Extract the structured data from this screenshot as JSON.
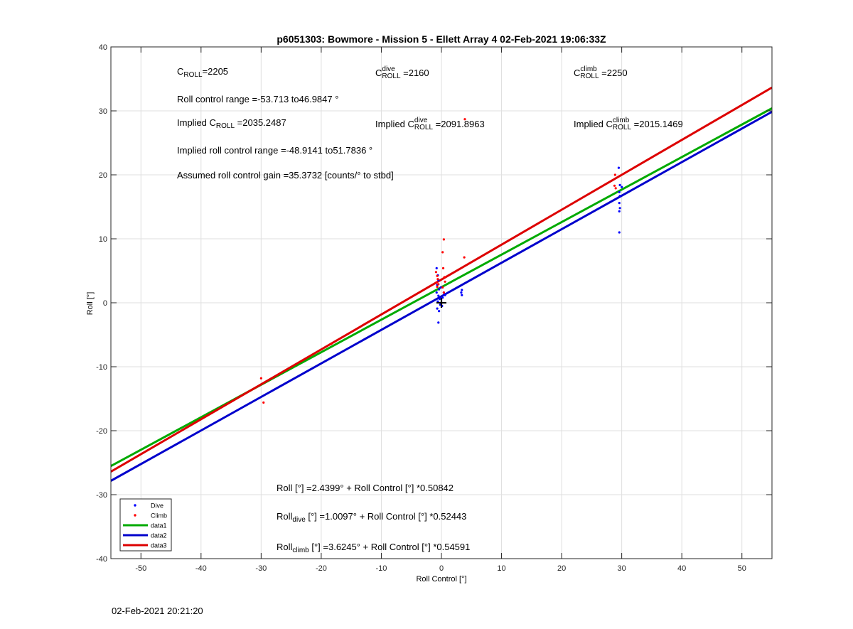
{
  "chart_data": {
    "type": "scatter",
    "title": "p6051303: Bowmore - Mission 5 - Ellett Array 4 02-Feb-2021 19:06:33Z",
    "xlabel": "Roll Control [°]",
    "ylabel": "Roll [°]",
    "xlim": [
      -55,
      55
    ],
    "ylim": [
      -40,
      40
    ],
    "xticks": [
      -50,
      -40,
      -30,
      -20,
      -10,
      0,
      10,
      20,
      30,
      40,
      50
    ],
    "yticks": [
      -40,
      -30,
      -20,
      -10,
      0,
      10,
      20,
      30,
      40
    ],
    "grid": true,
    "legend_position": "bottom-left",
    "legend": [
      {
        "label": "Dive",
        "kind": "marker",
        "color": "#0000ff"
      },
      {
        "label": "Climb",
        "kind": "marker",
        "color": "#ff0000"
      },
      {
        "label": "data1",
        "kind": "line",
        "color": "#00aa00"
      },
      {
        "label": "data2",
        "kind": "line",
        "color": "#0000cc"
      },
      {
        "label": "data3",
        "kind": "line",
        "color": "#dd0000"
      }
    ],
    "series": [
      {
        "name": "Dive",
        "kind": "points",
        "color": "#0000ff",
        "points": [
          [
            -0.8,
            5.4
          ],
          [
            -0.6,
            4.3
          ],
          [
            -0.5,
            3.5
          ],
          [
            -0.7,
            2.8
          ],
          [
            -0.4,
            2.1
          ],
          [
            -0.8,
            1.6
          ],
          [
            -0.5,
            1.1
          ],
          [
            -0.3,
            0.6
          ],
          [
            -0.6,
            0.2
          ],
          [
            -0.2,
            -0.3
          ],
          [
            -0.7,
            -0.9
          ],
          [
            -0.4,
            -1.3
          ],
          [
            -0.5,
            -3.1
          ],
          [
            0.2,
            0.8
          ],
          [
            0.4,
            1.6
          ],
          [
            0.1,
            -0.5
          ],
          [
            -0.1,
            2.4
          ],
          [
            0.6,
            1.2
          ],
          [
            3.4,
            2.0
          ],
          [
            3.3,
            1.6
          ],
          [
            3.4,
            1.2
          ],
          [
            29.5,
            21.1
          ],
          [
            29.7,
            18.4
          ],
          [
            30.0,
            18.1
          ],
          [
            29.6,
            17.3
          ],
          [
            29.7,
            16.7
          ],
          [
            29.6,
            15.6
          ],
          [
            29.7,
            14.8
          ],
          [
            29.6,
            14.3
          ],
          [
            29.6,
            11.0
          ]
        ]
      },
      {
        "name": "Climb",
        "kind": "points",
        "color": "#ff0000",
        "points": [
          [
            -0.9,
            4.8
          ],
          [
            -0.7,
            4.2
          ],
          [
            -0.6,
            3.7
          ],
          [
            -0.8,
            3.2
          ],
          [
            -0.5,
            2.9
          ],
          [
            -0.7,
            2.5
          ],
          [
            0.4,
            9.9
          ],
          [
            0.2,
            7.9
          ],
          [
            0.3,
            5.4
          ],
          [
            0.5,
            4.0
          ],
          [
            0.6,
            3.3
          ],
          [
            0.2,
            2.4
          ],
          [
            0.4,
            1.6
          ],
          [
            3.8,
            7.1
          ],
          [
            -30.0,
            -11.8
          ],
          [
            -29.6,
            -15.6
          ],
          [
            -18.3,
            -6.4
          ],
          [
            28.9,
            20.0
          ],
          [
            28.8,
            18.3
          ],
          [
            29.0,
            17.9
          ],
          [
            3.9,
            28.7
          ]
        ]
      },
      {
        "name": "data1",
        "kind": "line",
        "color": "#00aa00",
        "intercept": 2.4399,
        "slope": 0.50842
      },
      {
        "name": "data2",
        "kind": "line",
        "color": "#0000cc",
        "intercept": 1.0097,
        "slope": 0.52443
      },
      {
        "name": "data3",
        "kind": "line",
        "color": "#dd0000",
        "intercept": 3.6245,
        "slope": 0.54591
      }
    ],
    "marker": {
      "symbol": "+",
      "x": 0,
      "y": 0,
      "color": "#000000"
    }
  },
  "annotations": {
    "c_roll": {
      "prefix": "C",
      "sub": "ROLL",
      "value": "=2205"
    },
    "c_dive": {
      "prefix": "C",
      "sup": "dive",
      "sub": "ROLL",
      "value": " =2160"
    },
    "c_climb": {
      "prefix": "C",
      "sup": "climb",
      "sub": "ROLL",
      "value": " =2250"
    },
    "range": "Roll control range =-53.713 to46.9847 °",
    "implied": {
      "prefix": "Implied C",
      "sub": "ROLL",
      "value": " =2035.2487"
    },
    "implied_dive": {
      "prefix": "Implied C",
      "sup": "dive",
      "sub": "ROLL",
      "value": " =2091.8963"
    },
    "implied_climb": {
      "prefix": "Implied C",
      "sup": "climb",
      "sub": "ROLL",
      "value": " =2015.1469"
    },
    "implied_range": "Implied roll control range =-48.9141 to51.7836 °",
    "gain": "Assumed roll control gain =35.3732 [counts/° to stbd]",
    "fit_all": "Roll [°] =2.4399° + Roll Control [°] *0.50842",
    "fit_dive": {
      "prefix": "Roll",
      "sub": "dive",
      "value": " [°] =1.0097° + Roll Control [°] *0.52443"
    },
    "fit_climb": {
      "prefix": "Roll",
      "sub": "climb",
      "value": " [°] =3.6245° + Roll Control [°] *0.54591"
    }
  },
  "footer": "02-Feb-2021 20:21:20"
}
